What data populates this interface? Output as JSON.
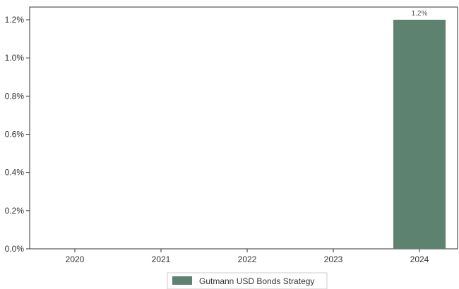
{
  "chart_data": {
    "type": "bar",
    "categories": [
      "2020",
      "2021",
      "2022",
      "2023",
      "2024"
    ],
    "series": [
      {
        "name": "Gutmann USD Bonds Strategy",
        "values": [
          0,
          0,
          0,
          0,
          1.2
        ]
      }
    ],
    "value_unit": "%",
    "data_labels": {
      "2024": "1.2%"
    },
    "ylim": [
      0,
      1.2
    ],
    "y_ticks": [
      0,
      0.2,
      0.4,
      0.6,
      0.8,
      1.0,
      1.2
    ],
    "y_tick_labels": [
      "0.0%",
      "0.2%",
      "0.4%",
      "0.6%",
      "0.8%",
      "1.0%",
      "1.2%"
    ],
    "grid": false,
    "legend_position": "bottom-center",
    "colors": {
      "bar": "#5e8270",
      "axis": "#333333"
    }
  }
}
